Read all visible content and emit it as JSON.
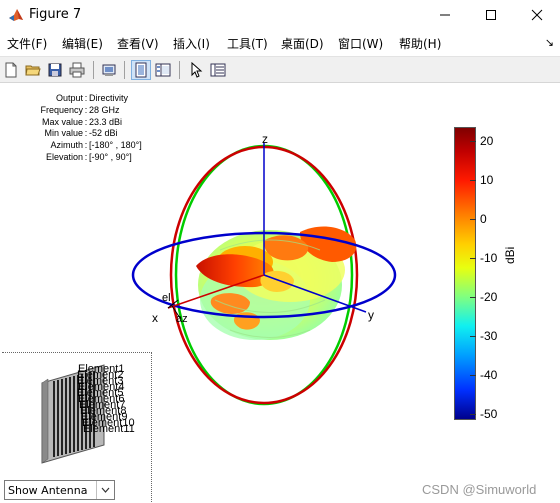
{
  "window": {
    "title": "Figure 7"
  },
  "menu": {
    "items": [
      "文件(F)",
      "编辑(E)",
      "查看(V)",
      "插入(I)",
      "工具(T)",
      "桌面(D)",
      "窗口(W)",
      "帮助(H)"
    ],
    "dock_arrow": "↘"
  },
  "toolbar": {
    "icons": [
      "new-figure-icon",
      "open-icon",
      "save-icon",
      "print-icon",
      "link-plot-icon",
      "hide-plot-tools-icon",
      "show-plot-tools-icon",
      "pointer-icon",
      "property-inspector-icon"
    ]
  },
  "info": [
    {
      "key": "Output",
      "value": "Directivity"
    },
    {
      "key": "Frequency",
      "value": "28 GHz"
    },
    {
      "key": "Max value",
      "value": "23.3 dBi"
    },
    {
      "key": "Min value",
      "value": "-52 dBi"
    },
    {
      "key": "Azimuth",
      "value": "[-180° , 180°]"
    },
    {
      "key": "Elevation",
      "value": "[-90° , 90°]"
    }
  ],
  "axes": {
    "x": "x",
    "y": "y",
    "z": "z",
    "el": "el",
    "az": "az"
  },
  "colorbar": {
    "ticks": [
      "20",
      "10",
      "0",
      "-10",
      "-20",
      "-30",
      "-40",
      "-50"
    ],
    "label": "dBi",
    "colors": {
      "top": "#800000",
      "mid": "#ffd000",
      "bottom": "#00008c"
    }
  },
  "antenna": {
    "element_labels": [
      "Element1",
      "Element2",
      "Element3",
      "Element4",
      "Element5",
      "Element6",
      "Element7",
      "Element8",
      "Element9",
      "Element10",
      "Element11"
    ]
  },
  "dropdown": {
    "value": "Show Antenna"
  },
  "watermark": "CSDN @Simuworld"
}
